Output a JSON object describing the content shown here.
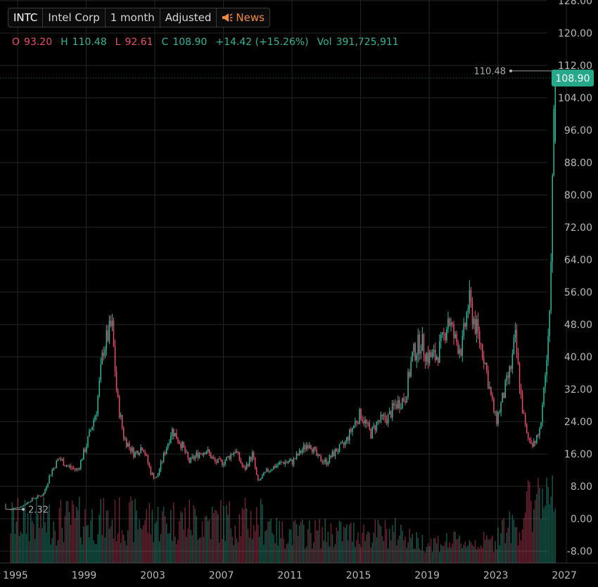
{
  "header": {
    "symbol": "INTC",
    "company": "Intel Corp",
    "interval": "1 month",
    "adjustment": "Adjusted",
    "news_label": "News"
  },
  "ohlc": {
    "o_label": "O",
    "o_value": "93.20",
    "h_label": "H",
    "h_value": "110.48",
    "l_label": "L",
    "l_value": "92.61",
    "c_label": "C",
    "c_value": "108.90",
    "change": "+14.42 (+15.26%)",
    "vol_label": "Vol",
    "vol_value": "391,725,911"
  },
  "colors": {
    "up": "#2fb59a",
    "down": "#e64a6a",
    "grid": "#262626",
    "axis_text": "#b8b8b8",
    "last_price_bg": "#26a88a"
  },
  "chart_data": {
    "type": "candlestick",
    "interval": "1 month",
    "y_ticks": [
      128,
      120,
      112,
      104,
      96,
      88,
      80,
      72,
      64,
      56,
      48,
      40,
      32,
      24,
      16,
      8,
      0,
      -8
    ],
    "y_tick_labels": [
      "128.00",
      "120.00",
      "112.00",
      "104.00",
      "96.00",
      "88.00",
      "80.00",
      "72.00",
      "64.00",
      "56.00",
      "48.00",
      "40.00",
      "32.00",
      "24.00",
      "16.00",
      "8.00",
      "0.00",
      "-8.00"
    ],
    "x_ticks": [
      1995,
      1999,
      2003,
      2007,
      2011,
      2015,
      2019,
      2023,
      2027
    ],
    "x_tick_labels": [
      "1995",
      "1999",
      "2003",
      "2007",
      "2011",
      "2015",
      "2019",
      "2023",
      "2027"
    ],
    "x_range": [
      1994.5,
      2027.8
    ],
    "y_range": [
      -10,
      128
    ],
    "last_price_label": "108.90",
    "last_price": 108.9,
    "max_label": "110.48",
    "max_value": 110.48,
    "min_label": "2.32",
    "min_value": 2.32,
    "price_anchors": [
      [
        1994.6,
        2.3
      ],
      [
        1995.3,
        3.2
      ],
      [
        1995.9,
        5.0
      ],
      [
        1996.5,
        6.0
      ],
      [
        1996.9,
        11.0
      ],
      [
        1997.4,
        15.0
      ],
      [
        1997.9,
        13.0
      ],
      [
        1998.5,
        12.0
      ],
      [
        1999.0,
        18.0
      ],
      [
        1999.6,
        27.0
      ],
      [
        2000.0,
        42.0
      ],
      [
        2000.5,
        48.0
      ],
      [
        2000.8,
        30.0
      ],
      [
        2001.2,
        20.0
      ],
      [
        2001.8,
        16.0
      ],
      [
        2002.3,
        18.0
      ],
      [
        2002.8,
        11.0
      ],
      [
        2003.1,
        10.0
      ],
      [
        2003.7,
        18.0
      ],
      [
        2004.0,
        22.0
      ],
      [
        2004.6,
        18.0
      ],
      [
        2005.0,
        14.0
      ],
      [
        2005.5,
        16.0
      ],
      [
        2006.0,
        17.0
      ],
      [
        2006.5,
        14.0
      ],
      [
        2007.0,
        14.0
      ],
      [
        2007.7,
        17.0
      ],
      [
        2008.2,
        12.0
      ],
      [
        2008.7,
        16.0
      ],
      [
        2009.0,
        9.0
      ],
      [
        2009.6,
        12.0
      ],
      [
        2010.0,
        13.0
      ],
      [
        2010.5,
        14.0
      ],
      [
        2011.0,
        14.0
      ],
      [
        2011.6,
        17.0
      ],
      [
        2012.0,
        19.0
      ],
      [
        2012.5,
        15.0
      ],
      [
        2013.0,
        14.0
      ],
      [
        2013.6,
        17.0
      ],
      [
        2014.0,
        18.0
      ],
      [
        2014.7,
        24.0
      ],
      [
        2015.0,
        26.0
      ],
      [
        2015.6,
        21.0
      ],
      [
        2016.0,
        24.0
      ],
      [
        2016.6,
        25.0
      ],
      [
        2017.0,
        28.0
      ],
      [
        2017.6,
        30.0
      ],
      [
        2018.0,
        40.0
      ],
      [
        2018.5,
        44.0
      ],
      [
        2018.9,
        40.0
      ],
      [
        2019.4,
        40.0
      ],
      [
        2019.8,
        44.0
      ],
      [
        2020.1,
        50.0
      ],
      [
        2020.5,
        44.0
      ],
      [
        2020.9,
        42.0
      ],
      [
        2021.3,
        54.0
      ],
      [
        2021.8,
        46.0
      ],
      [
        2022.2,
        40.0
      ],
      [
        2022.6,
        30.0
      ],
      [
        2022.9,
        24.0
      ],
      [
        2023.3,
        30.0
      ],
      [
        2023.8,
        38.0
      ],
      [
        2024.0,
        45.0
      ],
      [
        2024.4,
        28.0
      ],
      [
        2024.7,
        20.0
      ],
      [
        2025.0,
        19.0
      ],
      [
        2025.4,
        20.0
      ],
      [
        2025.7,
        33.0
      ],
      [
        2026.0,
        46.0
      ],
      [
        2026.25,
        96.0
      ],
      [
        2026.33,
        108.9
      ]
    ],
    "volume_note": "monthly volume bars drawn at bottom, same up/down colors"
  }
}
